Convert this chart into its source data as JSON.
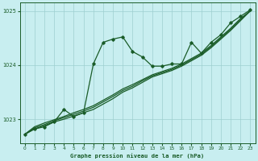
{
  "title": "Graphe pression niveau de la mer (hPa)",
  "bg_color": "#c8eef0",
  "grid_color": "#9ecfcf",
  "line_color": "#1a5c28",
  "xlim": [
    -0.5,
    23.5
  ],
  "ylim": [
    1022.55,
    1025.15
  ],
  "yticks": [
    1023,
    1024,
    1025
  ],
  "xticks": [
    0,
    1,
    2,
    3,
    4,
    5,
    6,
    7,
    8,
    9,
    10,
    11,
    12,
    13,
    14,
    15,
    16,
    17,
    18,
    19,
    20,
    21,
    22,
    23
  ],
  "smooth1": {
    "x": [
      0,
      1,
      2,
      3,
      4,
      5,
      6,
      7,
      8,
      9,
      10,
      11,
      12,
      13,
      14,
      15,
      16,
      17,
      18,
      19,
      20,
      21,
      22,
      23
    ],
    "y": [
      1022.72,
      1022.82,
      1022.88,
      1022.95,
      1023.0,
      1023.06,
      1023.12,
      1023.18,
      1023.28,
      1023.38,
      1023.5,
      1023.58,
      1023.68,
      1023.78,
      1023.84,
      1023.9,
      1023.98,
      1024.08,
      1024.18,
      1024.32,
      1024.48,
      1024.64,
      1024.82,
      1025.0
    ]
  },
  "smooth2": {
    "x": [
      0,
      1,
      2,
      3,
      4,
      5,
      6,
      7,
      8,
      9,
      10,
      11,
      12,
      13,
      14,
      15,
      16,
      17,
      18,
      19,
      20,
      21,
      22,
      23
    ],
    "y": [
      1022.72,
      1022.84,
      1022.9,
      1022.97,
      1023.03,
      1023.09,
      1023.15,
      1023.22,
      1023.32,
      1023.42,
      1023.53,
      1023.61,
      1023.71,
      1023.8,
      1023.86,
      1023.92,
      1024.0,
      1024.1,
      1024.2,
      1024.34,
      1024.5,
      1024.66,
      1024.84,
      1025.0
    ]
  },
  "smooth3": {
    "x": [
      0,
      1,
      2,
      3,
      4,
      5,
      6,
      7,
      8,
      9,
      10,
      11,
      12,
      13,
      14,
      15,
      16,
      17,
      18,
      19,
      20,
      21,
      22,
      23
    ],
    "y": [
      1022.72,
      1022.86,
      1022.93,
      1022.99,
      1023.05,
      1023.12,
      1023.18,
      1023.25,
      1023.35,
      1023.45,
      1023.56,
      1023.64,
      1023.73,
      1023.82,
      1023.88,
      1023.94,
      1024.02,
      1024.12,
      1024.22,
      1024.36,
      1024.52,
      1024.68,
      1024.86,
      1025.0
    ]
  },
  "noisy": {
    "x": [
      0,
      1,
      2,
      3,
      4,
      5,
      6,
      7,
      8,
      9,
      10,
      11,
      12,
      13,
      14,
      15,
      16,
      17,
      18,
      19,
      20,
      21,
      22,
      23
    ],
    "y": [
      1022.72,
      1022.82,
      1022.86,
      1022.95,
      1023.18,
      1023.05,
      1023.12,
      1024.02,
      1024.42,
      1024.48,
      1024.52,
      1024.25,
      1024.15,
      1023.98,
      1023.98,
      1024.02,
      1024.02,
      1024.42,
      1024.22,
      1024.42,
      1024.56,
      1024.78,
      1024.9,
      1025.02
    ]
  }
}
